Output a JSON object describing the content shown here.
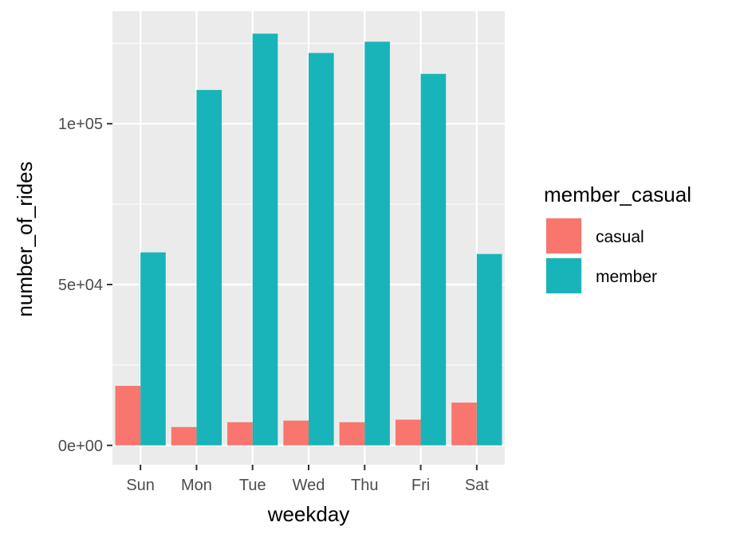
{
  "chart_data": {
    "type": "bar",
    "xlabel": "weekday",
    "ylabel": "number_of_rides",
    "categories": [
      "Sun",
      "Mon",
      "Tue",
      "Wed",
      "Thu",
      "Fri",
      "Sat"
    ],
    "series": [
      {
        "name": "casual",
        "color": "#F8766D",
        "values": [
          18500,
          5700,
          7200,
          7700,
          7200,
          8000,
          13300
        ]
      },
      {
        "name": "member",
        "color": "#19B4B9",
        "values": [
          60000,
          110500,
          128000,
          122000,
          125500,
          115500,
          59500
        ]
      }
    ],
    "yticks": [
      {
        "value": 0,
        "label": "0e+00"
      },
      {
        "value": 50000,
        "label": "5e+04"
      },
      {
        "value": 100000,
        "label": "1e+05"
      }
    ],
    "ylim": [
      -6000,
      135000
    ],
    "grid": true,
    "legend": {
      "title": "member_casual",
      "position": "right"
    },
    "panel_background": "#EBEBEB"
  }
}
